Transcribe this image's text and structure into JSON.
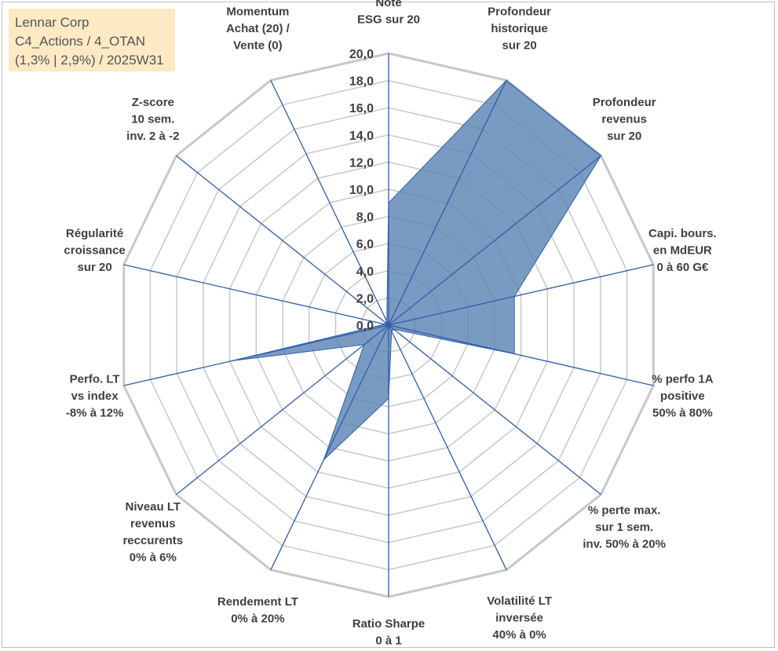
{
  "info_box": {
    "line1": "Lennar Corp",
    "line2": "C4_Actions / 4_OTAN",
    "line3": "(1,3% | 2,9%) / 2025W31"
  },
  "colors": {
    "fill": "#5b85b5",
    "spoke": "#2f5ea8",
    "grid": "#c8c8c8",
    "info_bg": "#fde9c4"
  },
  "chart_data": {
    "type": "radar",
    "title": "",
    "rmin": 0,
    "rmax": 20,
    "tick_step": 2,
    "ticks": [
      "0,0",
      "2,0",
      "4,0",
      "6,0",
      "8,0",
      "10,0",
      "12,0",
      "14,0",
      "16,0",
      "18,0",
      "20,0"
    ],
    "axes": [
      [
        "Note",
        "ESG sur 20"
      ],
      [
        "Profondeur",
        "historique",
        "sur 20"
      ],
      [
        "Profondeur",
        "revenus",
        "sur 20"
      ],
      [
        "Capi. bours.",
        "en MdEUR",
        "0 à 60 G€"
      ],
      [
        "% perfo 1A",
        "positive",
        "50% à 80%"
      ],
      [
        "% perte max.",
        "sur 1 sem.",
        "inv. 50% à 20%"
      ],
      [
        "Volatilité LT",
        "inversée",
        "40% à 0%"
      ],
      [
        "Ratio Sharpe",
        "0 à 1"
      ],
      [
        "Rendement LT",
        "0% à 20%"
      ],
      [
        "Niveau LT",
        "revenus",
        "reccurents",
        "0% à 6%"
      ],
      [
        "Perfo. LT",
        "vs index",
        "-8% à 12%"
      ],
      [
        "Régularité",
        "croissance",
        "sur 20"
      ],
      [
        "Z-score",
        "10 sem.",
        "inv. 2 à -2"
      ],
      [
        "Momentum",
        "Achat (20) /",
        "Vente (0)"
      ]
    ],
    "series": [
      {
        "values": [
          9.0,
          20.0,
          20.0,
          9.5,
          9.5,
          0.5,
          0.5,
          5.4,
          11.0,
          2.3,
          11.8,
          0.3,
          0.3,
          0.3
        ]
      }
    ]
  }
}
